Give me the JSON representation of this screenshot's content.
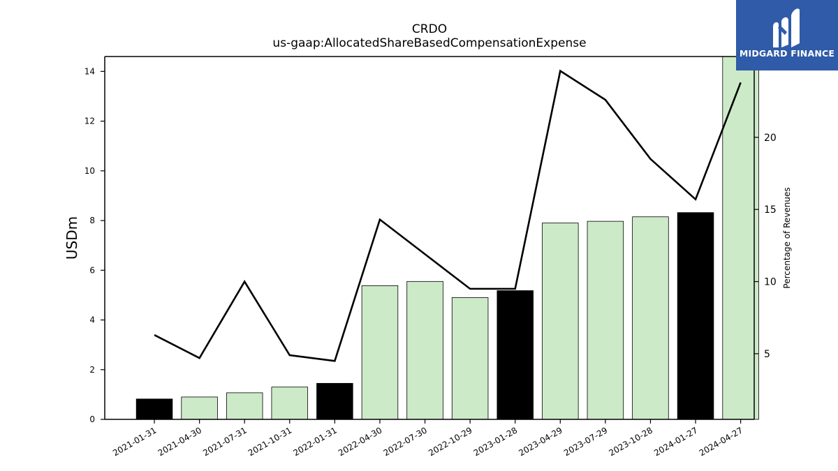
{
  "header": {
    "title_line1": "CRDO",
    "title_line2": "us-gaap:AllocatedShareBasedCompensationExpense"
  },
  "logo": {
    "text": "MIDGARD FINANCE",
    "background": "#2f5ba8",
    "icon": "midgard-logo-icon"
  },
  "chart_data": {
    "type": "bar",
    "categories": [
      "2021-01-31",
      "2021-04-30",
      "2021-07-31",
      "2021-10-31",
      "2022-01-31",
      "2022-04-30",
      "2022-07-30",
      "2022-10-29",
      "2023-01-28",
      "2023-04-29",
      "2023-07-29",
      "2023-10-28",
      "2024-01-27",
      "2024-04-27"
    ],
    "series": [
      {
        "name": "",
        "kind": "bar",
        "axis": "left",
        "values": [
          0.82,
          0.9,
          1.07,
          1.3,
          1.45,
          5.38,
          5.55,
          4.9,
          5.18,
          7.9,
          7.97,
          8.15,
          8.32,
          14.62
        ],
        "colors": [
          "#000000",
          "#cdeac8",
          "#cdeac8",
          "#cdeac8",
          "#000000",
          "#cdeac8",
          "#cdeac8",
          "#cdeac8",
          "#000000",
          "#cdeac8",
          "#cdeac8",
          "#cdeac8",
          "#000000",
          "#cdeac8"
        ]
      },
      {
        "name": "",
        "kind": "line",
        "axis": "right",
        "color": "#000000",
        "values": [
          6.3,
          4.7,
          10.0,
          4.9,
          4.5,
          14.3,
          11.9,
          9.5,
          9.5,
          24.6,
          22.6,
          18.5,
          15.7,
          23.8
        ]
      }
    ],
    "ylabel": "USDm",
    "y2label": "Percentage of Revenues",
    "ylim": [
      0,
      14.6
    ],
    "y2lim": [
      0.45,
      25.6
    ],
    "yticks": [
      0,
      2,
      4,
      6,
      8,
      10,
      12,
      14
    ],
    "y2ticks": [
      5,
      10,
      15,
      20
    ],
    "grid": false,
    "legend": "none"
  }
}
